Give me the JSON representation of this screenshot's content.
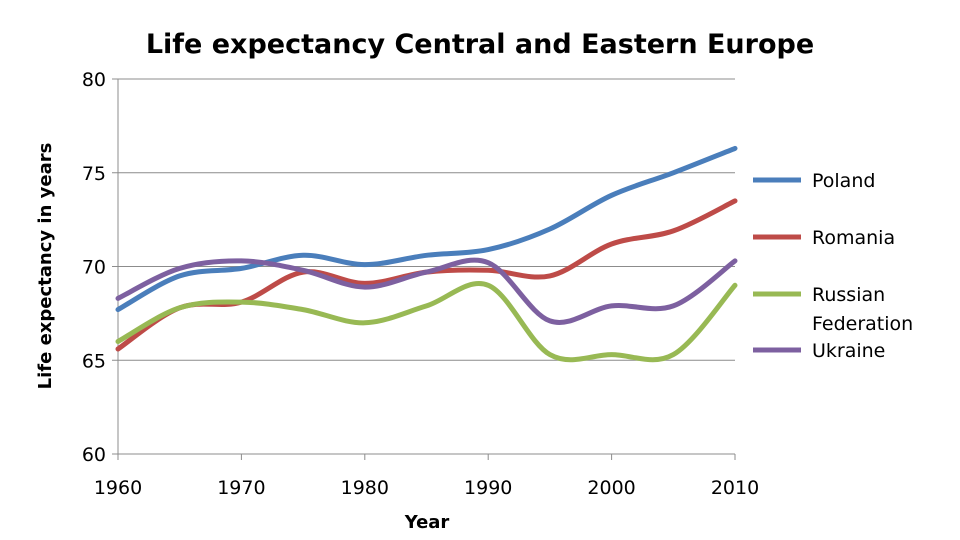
{
  "chart_data": {
    "type": "line",
    "title": "Life expectancy Central and Eastern Europe",
    "xlabel": "Year",
    "ylabel": "Life expectancy in years",
    "xlim": [
      1960,
      2010
    ],
    "ylim": [
      60,
      80
    ],
    "x_ticks": [
      "1960",
      "1970",
      "1980",
      "1990",
      "2000",
      "2010"
    ],
    "y_ticks": [
      "60",
      "65",
      "70",
      "75",
      "80"
    ],
    "x_tick_values": [
      1960,
      1970,
      1980,
      1990,
      2000,
      2010
    ],
    "y_tick_values": [
      60,
      65,
      70,
      75,
      80
    ],
    "grid": true,
    "legend_position": "right",
    "x": [
      1960,
      1965,
      1970,
      1975,
      1980,
      1985,
      1990,
      1995,
      2000,
      2005,
      2010
    ],
    "series": [
      {
        "name": "Poland",
        "legend_lines": [
          "Poland"
        ],
        "color": "#4a7ebb",
        "values": [
          67.7,
          69.5,
          69.9,
          70.6,
          70.1,
          70.6,
          70.9,
          72.0,
          73.8,
          75.0,
          76.3
        ]
      },
      {
        "name": "Romania",
        "legend_lines": [
          "Romania"
        ],
        "color": "#be4b48",
        "values": [
          65.6,
          67.8,
          68.1,
          69.7,
          69.1,
          69.7,
          69.8,
          69.5,
          71.2,
          71.9,
          73.5
        ]
      },
      {
        "name": "Russian Federation",
        "legend_lines": [
          "Russian",
          "Federation"
        ],
        "color": "#98b954",
        "values": [
          66.0,
          67.8,
          68.1,
          67.7,
          67.0,
          67.9,
          69.0,
          65.3,
          65.3,
          65.3,
          69.0
        ]
      },
      {
        "name": "Ukraine",
        "legend_lines": [
          "Ukraine"
        ],
        "color": "#7d60a0",
        "values": [
          68.3,
          69.9,
          70.3,
          69.8,
          68.9,
          69.7,
          70.2,
          67.1,
          67.9,
          67.9,
          70.3
        ]
      }
    ]
  }
}
